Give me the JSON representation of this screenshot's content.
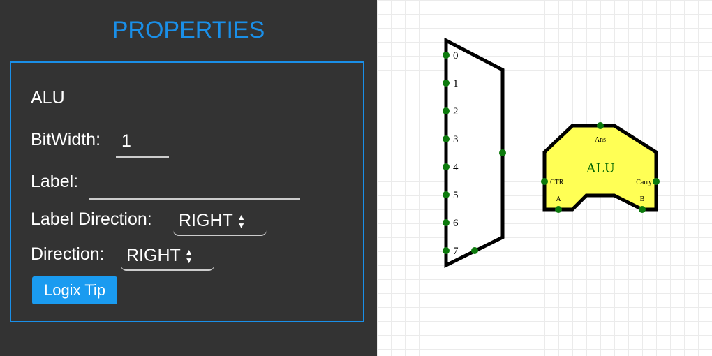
{
  "panel": {
    "title": "PROPERTIES",
    "element_name": "ALU",
    "bitwidth_label": "BitWidth:",
    "bitwidth_value": "1",
    "label_label": "Label:",
    "label_value": "",
    "label_direction_label": "Label Direction:",
    "label_direction_value": "RIGHT",
    "direction_label": "Direction:",
    "direction_value": "RIGHT",
    "logix_tip_label": "Logix Tip"
  },
  "canvas": {
    "mux": {
      "input_labels": [
        "0",
        "1",
        "2",
        "3",
        "4",
        "5",
        "6",
        "7"
      ]
    },
    "alu": {
      "name": "ALU",
      "ans_label": "Ans",
      "ctr_label": "CTR",
      "carry_label": "Carry",
      "a_label": "A",
      "b_label": "B"
    }
  },
  "colors": {
    "panel_bg": "#333333",
    "accent": "#1a8fe8",
    "button": "#1a9bf0",
    "node": "#0d7a0d",
    "alu_fill": "#ffff55",
    "alu_text": "#006400"
  }
}
